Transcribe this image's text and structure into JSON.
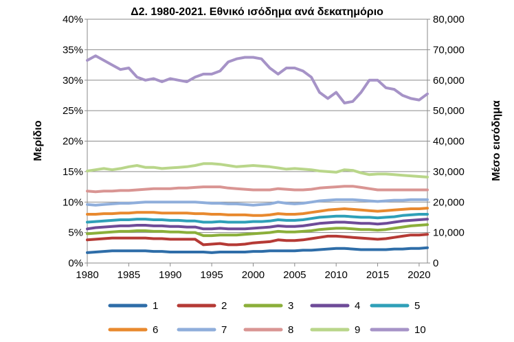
{
  "chart_data": {
    "type": "line",
    "title": "Δ2. 1980-2021. Εθνικό ισόδημα ανά δεκατημόριο",
    "ylabel": "Μερίδιο",
    "y2label": "Μέσο εισόδημα",
    "xlim": [
      1980,
      2021
    ],
    "ylim": [
      0,
      40
    ],
    "y2lim": [
      0,
      80000
    ],
    "x_ticks": [
      "1980",
      "1985",
      "1990",
      "1995",
      "2000",
      "2005",
      "2010",
      "2015",
      "2020"
    ],
    "y_ticks": [
      "0%",
      "5%",
      "10%",
      "15%",
      "20%",
      "25%",
      "30%",
      "35%",
      "40%"
    ],
    "y2_ticks": [
      "0",
      "10,000",
      "20,000",
      "30,000",
      "40,000",
      "50,000",
      "60,000",
      "70,000",
      "80,000"
    ],
    "grid": true,
    "legend_position": "bottom",
    "x": [
      1980,
      1981,
      1982,
      1983,
      1984,
      1985,
      1986,
      1987,
      1988,
      1989,
      1990,
      1991,
      1992,
      1993,
      1994,
      1995,
      1996,
      1997,
      1998,
      1999,
      2000,
      2001,
      2002,
      2003,
      2004,
      2005,
      2006,
      2007,
      2008,
      2009,
      2010,
      2011,
      2012,
      2013,
      2014,
      2015,
      2016,
      2017,
      2018,
      2019,
      2020,
      2021
    ],
    "series": [
      {
        "name": "1",
        "color": "#2E6DA8",
        "axis": "left",
        "values": [
          1.7,
          1.8,
          1.9,
          2.0,
          2.0,
          2.0,
          2.0,
          2.0,
          1.9,
          1.9,
          1.8,
          1.8,
          1.8,
          1.8,
          1.8,
          1.7,
          1.8,
          1.8,
          1.8,
          1.8,
          1.9,
          1.9,
          2.0,
          2.0,
          2.0,
          2.0,
          2.1,
          2.1,
          2.2,
          2.3,
          2.4,
          2.4,
          2.3,
          2.2,
          2.2,
          2.2,
          2.2,
          2.3,
          2.3,
          2.4,
          2.4,
          2.5
        ]
      },
      {
        "name": "2",
        "color": "#B53A35",
        "axis": "left",
        "values": [
          3.8,
          3.9,
          4.0,
          4.1,
          4.1,
          4.1,
          4.1,
          4.1,
          4.0,
          4.0,
          3.9,
          3.9,
          3.9,
          3.9,
          3.0,
          3.1,
          3.2,
          3.0,
          3.0,
          3.1,
          3.3,
          3.4,
          3.5,
          3.8,
          3.7,
          3.7,
          3.8,
          4.0,
          4.2,
          4.4,
          4.4,
          4.3,
          4.2,
          4.1,
          4.0,
          3.9,
          4.0,
          4.2,
          4.4,
          4.6,
          4.6,
          4.7
        ]
      },
      {
        "name": "3",
        "color": "#8BAF3A",
        "axis": "left",
        "values": [
          4.8,
          4.9,
          5.0,
          5.1,
          5.2,
          5.2,
          5.3,
          5.3,
          5.2,
          5.2,
          5.1,
          5.1,
          5.0,
          5.0,
          4.5,
          4.5,
          4.6,
          4.6,
          4.6,
          4.7,
          4.8,
          4.9,
          5.0,
          5.2,
          5.1,
          5.1,
          5.2,
          5.3,
          5.5,
          5.6,
          5.7,
          5.7,
          5.6,
          5.5,
          5.5,
          5.4,
          5.5,
          5.7,
          5.9,
          6.1,
          6.2,
          6.3
        ]
      },
      {
        "name": "4",
        "color": "#6E4B98",
        "axis": "left",
        "values": [
          5.6,
          5.8,
          5.9,
          6.0,
          6.1,
          6.1,
          6.2,
          6.2,
          6.1,
          6.1,
          6.0,
          6.0,
          5.9,
          5.9,
          5.6,
          5.6,
          5.7,
          5.6,
          5.6,
          5.6,
          5.7,
          5.8,
          5.9,
          6.1,
          6.0,
          6.0,
          6.1,
          6.3,
          6.5,
          6.6,
          6.7,
          6.7,
          6.6,
          6.5,
          6.5,
          6.4,
          6.5,
          6.7,
          6.9,
          7.0,
          7.1,
          7.2
        ]
      },
      {
        "name": "5",
        "color": "#2FA0B8",
        "axis": "left",
        "values": [
          6.7,
          6.8,
          6.9,
          7.0,
          7.1,
          7.1,
          7.2,
          7.2,
          7.1,
          7.1,
          7.0,
          7.0,
          6.9,
          6.9,
          6.7,
          6.7,
          6.8,
          6.7,
          6.7,
          6.7,
          6.8,
          6.8,
          6.9,
          7.1,
          7.0,
          7.0,
          7.1,
          7.3,
          7.5,
          7.6,
          7.7,
          7.7,
          7.6,
          7.5,
          7.5,
          7.4,
          7.5,
          7.6,
          7.8,
          7.9,
          8.0,
          8.0
        ]
      },
      {
        "name": "6",
        "color": "#E8892E",
        "axis": "left",
        "values": [
          8.0,
          8.0,
          8.1,
          8.1,
          8.2,
          8.2,
          8.3,
          8.3,
          8.3,
          8.2,
          8.2,
          8.2,
          8.2,
          8.1,
          8.1,
          8.0,
          8.0,
          7.9,
          7.9,
          7.9,
          7.8,
          7.8,
          7.9,
          8.1,
          8.0,
          8.0,
          8.1,
          8.3,
          8.5,
          8.7,
          8.8,
          8.9,
          8.8,
          8.7,
          8.6,
          8.5,
          8.6,
          8.7,
          8.8,
          8.9,
          8.9,
          9.0
        ]
      },
      {
        "name": "7",
        "color": "#8FAEDB",
        "axis": "left",
        "values": [
          9.6,
          9.5,
          9.6,
          9.7,
          9.8,
          9.8,
          9.9,
          10.0,
          10.0,
          10.0,
          10.0,
          10.0,
          10.0,
          10.0,
          9.9,
          9.8,
          9.8,
          9.7,
          9.7,
          9.6,
          9.5,
          9.6,
          9.7,
          10.0,
          9.8,
          9.7,
          9.8,
          10.0,
          10.2,
          10.3,
          10.4,
          10.4,
          10.4,
          10.3,
          10.2,
          10.1,
          10.2,
          10.3,
          10.3,
          10.4,
          10.4,
          10.4
        ]
      },
      {
        "name": "8",
        "color": "#D99593",
        "axis": "left",
        "values": [
          11.8,
          11.7,
          11.8,
          11.8,
          11.9,
          11.9,
          12.0,
          12.1,
          12.2,
          12.2,
          12.2,
          12.3,
          12.3,
          12.4,
          12.5,
          12.5,
          12.5,
          12.3,
          12.2,
          12.1,
          12.0,
          12.0,
          12.0,
          12.2,
          12.1,
          12.0,
          12.0,
          12.1,
          12.3,
          12.4,
          12.5,
          12.6,
          12.6,
          12.4,
          12.2,
          12.0,
          12.0,
          12.0,
          12.0,
          12.0,
          12.0,
          12.0
        ]
      },
      {
        "name": "9",
        "color": "#B9D68A",
        "axis": "left",
        "values": [
          15.1,
          15.3,
          15.5,
          15.3,
          15.5,
          15.8,
          16.0,
          15.7,
          15.7,
          15.5,
          15.6,
          15.7,
          15.8,
          16.0,
          16.3,
          16.3,
          16.2,
          16.0,
          15.8,
          15.9,
          16.0,
          15.9,
          15.8,
          15.6,
          15.4,
          15.5,
          15.4,
          15.3,
          15.1,
          15.0,
          14.9,
          15.3,
          15.2,
          14.8,
          14.5,
          14.6,
          14.6,
          14.5,
          14.4,
          14.3,
          14.2,
          14.1
        ]
      },
      {
        "name": "10",
        "color": "#A693C7",
        "axis": "right",
        "values": [
          66500,
          68000,
          66500,
          65000,
          63500,
          64000,
          61000,
          60000,
          60500,
          59500,
          60500,
          60000,
          59500,
          61000,
          62000,
          62000,
          63000,
          66000,
          67000,
          67500,
          67500,
          67000,
          64000,
          62000,
          64000,
          64000,
          63000,
          61000,
          56000,
          54000,
          56000,
          52500,
          53000,
          56000,
          60000,
          60000,
          57500,
          57000,
          55000,
          54000,
          53500,
          55500
        ]
      }
    ]
  }
}
